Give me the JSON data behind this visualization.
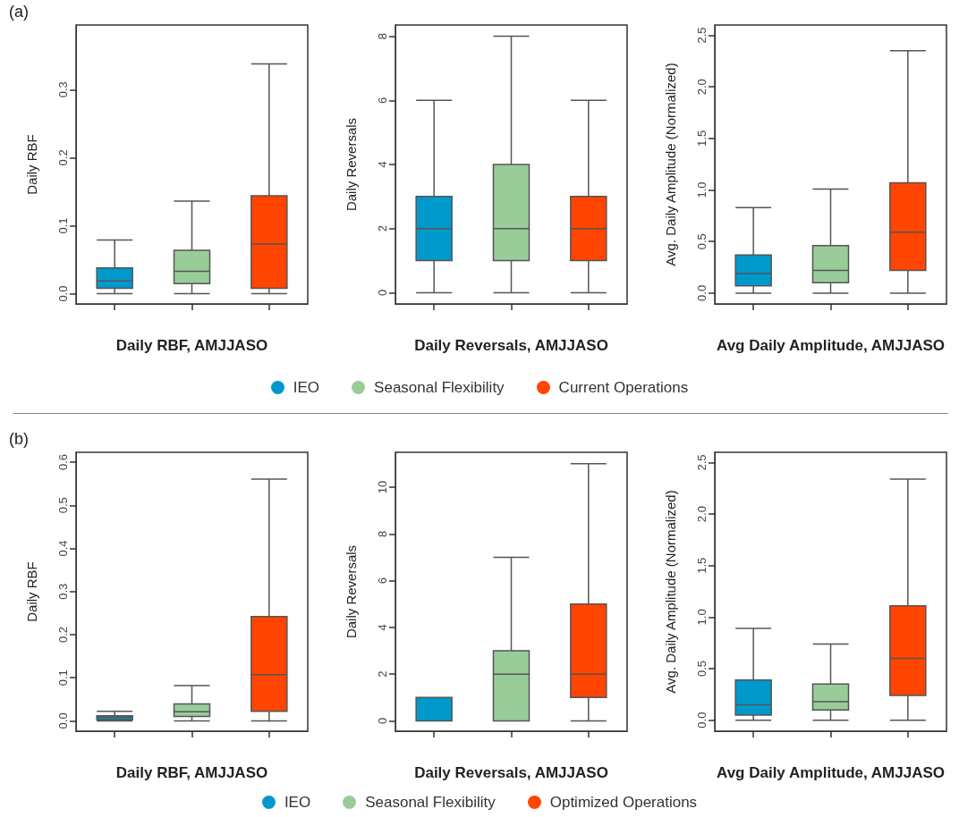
{
  "chart_data": [
    {
      "type": "box",
      "annotations": [
        "(a)"
      ],
      "xlabel": "Daily RBF, AMJJASO",
      "ylabel": "Daily RBF",
      "categories": [
        null,
        null,
        null
      ],
      "tick_labels": "y",
      "ylim": [
        -0.015,
        0.395
      ],
      "yticks": [
        {
          "value": 0,
          "label": "0.0"
        },
        0.1,
        0.2,
        0.3
      ],
      "series": [
        {
          "color": "#0099cc",
          "boxes": [
            {
              "low": 0,
              "q1": 0.008,
              "median": 0.019,
              "q3": 0.038,
              "high": 0.079
            },
            null,
            null
          ]
        },
        {
          "color": "#99cc99",
          "boxes": [
            null,
            {
              "low": 0,
              "q1": 0.015,
              "median": 0.033,
              "q3": 0.064,
              "high": 0.136
            },
            null
          ]
        },
        {
          "color": "#ff4500",
          "boxes": [
            null,
            null,
            {
              "low": 0,
              "q1": 0.008,
              "median": 0.073,
              "q3": 0.144,
              "high": 0.338
            }
          ]
        }
      ]
    },
    {
      "type": "box",
      "xlabel": "Daily Reversals, AMJJASO",
      "ylabel": "Daily Reversals",
      "categories": [
        null,
        null,
        null
      ],
      "tick_labels": "y",
      "ylim": [
        -0.35,
        8.35
      ],
      "yticks": [
        0,
        2,
        4,
        6,
        8
      ],
      "legend": "bottom",
      "series": [
        {
          "name": "IEO",
          "color": "#0099cc",
          "boxes": [
            {
              "low": 0,
              "q1": 1,
              "median": 2,
              "q3": 3,
              "high": 6
            },
            null,
            null
          ]
        },
        {
          "name": "Seasonal Flexibility",
          "color": "#99cc99",
          "boxes": [
            null,
            {
              "low": 0,
              "q1": 1,
              "median": 2,
              "q3": 4,
              "high": 8
            },
            null
          ]
        },
        {
          "name": "Current Operations",
          "color": "#ff4500",
          "boxes": [
            null,
            null,
            {
              "low": 0,
              "q1": 1,
              "median": 2,
              "q3": 3,
              "high": 6
            }
          ]
        }
      ]
    },
    {
      "type": "box",
      "xlabel": "Avg Daily Amplitude, AMJJASO",
      "ylabel": "Avg. Daily Amplitude (Normalized)",
      "categories": [
        null,
        null,
        null
      ],
      "tick_labels": "y",
      "ylim": [
        -0.105,
        2.6
      ],
      "yticks": [
        {
          "value": 0,
          "label": "0.0"
        },
        0.5,
        {
          "value": 1,
          "label": "1.0"
        },
        1.5,
        {
          "value": 2,
          "label": "2.0"
        },
        2.5
      ],
      "series": [
        {
          "color": "#0099cc",
          "boxes": [
            {
              "low": 0,
              "q1": 0.07,
              "median": 0.19,
              "q3": 0.37,
              "high": 0.83
            },
            null,
            null
          ]
        },
        {
          "color": "#99cc99",
          "boxes": [
            null,
            {
              "low": 0,
              "q1": 0.1,
              "median": 0.22,
              "q3": 0.46,
              "high": 1.01
            },
            null
          ]
        },
        {
          "color": "#ff4500",
          "boxes": [
            null,
            null,
            {
              "low": 0,
              "q1": 0.22,
              "median": 0.59,
              "q3": 1.07,
              "high": 2.35
            }
          ]
        }
      ]
    },
    {
      "type": "box",
      "annotations": [
        "(b)"
      ],
      "xlabel": "Daily RBF, AMJJASO",
      "ylabel": "Daily RBF",
      "categories": [
        null,
        null,
        null
      ],
      "tick_labels": "y",
      "ylim": [
        -0.024,
        0.623
      ],
      "yticks": [
        {
          "value": 0,
          "label": "0.0"
        },
        0.1,
        0.2,
        0.3,
        0.4,
        0.5,
        0.6
      ],
      "series": [
        {
          "color": "#0099cc",
          "boxes": [
            {
              "low": 0,
              "q1": 0.003,
              "median": 0.008,
              "q3": 0.012,
              "high": 0.022
            },
            null,
            null
          ]
        },
        {
          "color": "#99cc99",
          "boxes": [
            null,
            {
              "low": 0,
              "q1": 0.01,
              "median": 0.021,
              "q3": 0.039,
              "high": 0.082
            },
            null
          ]
        },
        {
          "color": "#ff4500",
          "boxes": [
            null,
            null,
            {
              "low": 0,
              "q1": 0.022,
              "median": 0.107,
              "q3": 0.242,
              "high": 0.561
            }
          ]
        }
      ]
    },
    {
      "type": "box",
      "xlabel": "Daily Reversals, AMJJASO",
      "ylabel": "Daily Reversals",
      "categories": [
        null,
        null,
        null
      ],
      "tick_labels": "y",
      "ylim": [
        -0.44,
        11.49
      ],
      "yticks": [
        0,
        2,
        4,
        6,
        8,
        10
      ],
      "legend": "bottom",
      "series": [
        {
          "name": "IEO",
          "color": "#0099cc",
          "boxes": [
            {
              "low": 0,
              "q1": 0,
              "median": 0,
              "q3": 1,
              "high": 1
            },
            null,
            null
          ]
        },
        {
          "name": "Seasonal Flexibility",
          "color": "#99cc99",
          "boxes": [
            null,
            {
              "low": 0,
              "q1": 0,
              "median": 2,
              "q3": 3,
              "high": 7
            },
            null
          ]
        },
        {
          "name": "Optimized Operations",
          "color": "#ff4500",
          "boxes": [
            null,
            null,
            {
              "low": 0,
              "q1": 1,
              "median": 2,
              "q3": 5,
              "high": 11
            }
          ]
        }
      ]
    },
    {
      "type": "box",
      "xlabel": "Avg Daily Amplitude, AMJJASO",
      "ylabel": "Avg. Daily Amplitude (Normalized)",
      "categories": [
        null,
        null,
        null
      ],
      "tick_labels": "y",
      "ylim": [
        -0.107,
        2.6
      ],
      "yticks": [
        {
          "value": 0,
          "label": "0.0"
        },
        0.5,
        {
          "value": 1,
          "label": "1.0"
        },
        1.5,
        {
          "value": 2,
          "label": "2.0"
        },
        2.5
      ],
      "series": [
        {
          "color": "#0099cc",
          "boxes": [
            {
              "low": 0,
              "q1": 0.05,
              "median": 0.15,
              "q3": 0.39,
              "high": 0.89
            },
            null,
            null
          ]
        },
        {
          "color": "#99cc99",
          "boxes": [
            null,
            {
              "low": 0,
              "q1": 0.1,
              "median": 0.18,
              "q3": 0.35,
              "high": 0.74
            },
            null
          ]
        },
        {
          "color": "#ff4500",
          "boxes": [
            null,
            null,
            {
              "low": 0,
              "q1": 0.24,
              "median": 0.6,
              "q3": 1.11,
              "high": 2.34
            }
          ]
        }
      ]
    }
  ]
}
